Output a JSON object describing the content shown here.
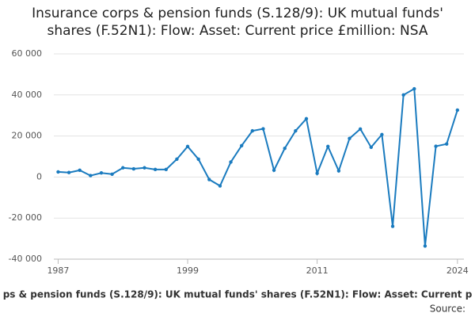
{
  "chart_data": {
    "type": "line",
    "title": "Insurance corps & pension funds (S.128/9): UK mutual funds' shares (F.52N1): Flow: Asset: Current price £million: NSA",
    "x_label": "ps & pension funds (S.128/9): UK mutual funds' shares (F.52N1): Flow: Asset: Current p",
    "source": "Source:",
    "x": [
      1987,
      1988,
      1989,
      1990,
      1991,
      1992,
      1993,
      1994,
      1995,
      1996,
      1997,
      1998,
      1999,
      2000,
      2001,
      2002,
      2003,
      2004,
      2005,
      2006,
      2007,
      2008,
      2009,
      2010,
      2011,
      2012,
      2013,
      2014,
      2015,
      2016,
      2017,
      2018,
      2019,
      2020,
      2021,
      2022,
      2023,
      2024
    ],
    "series": [
      {
        "color": "#1a7bbf",
        "values": [
          2500,
          2200,
          3300,
          700,
          2000,
          1400,
          4500,
          4000,
          4500,
          3700,
          3700,
          8700,
          14900,
          8700,
          -1200,
          -4300,
          7300,
          15300,
          22500,
          23500,
          3300,
          14000,
          22500,
          28400,
          1800,
          14900,
          3000,
          18800,
          23400,
          14500,
          20700,
          -24000,
          40000,
          43000,
          -33600,
          15000,
          16100,
          32600
        ]
      }
    ],
    "xlim": [
      1986.6,
      2024.6
    ],
    "xticks": [
      1987,
      1999,
      2011,
      2024
    ],
    "ylim": [
      -40000,
      60000
    ],
    "yticks": [
      {
        "value": -40000,
        "label": "-40 000"
      },
      {
        "value": -20000,
        "label": "-20 000"
      },
      {
        "value": 0,
        "label": "0"
      },
      {
        "value": 20000,
        "label": "20 000"
      },
      {
        "value": 40000,
        "label": "40 000"
      },
      {
        "value": 60000,
        "label": "60 000"
      }
    ],
    "grid": true
  }
}
